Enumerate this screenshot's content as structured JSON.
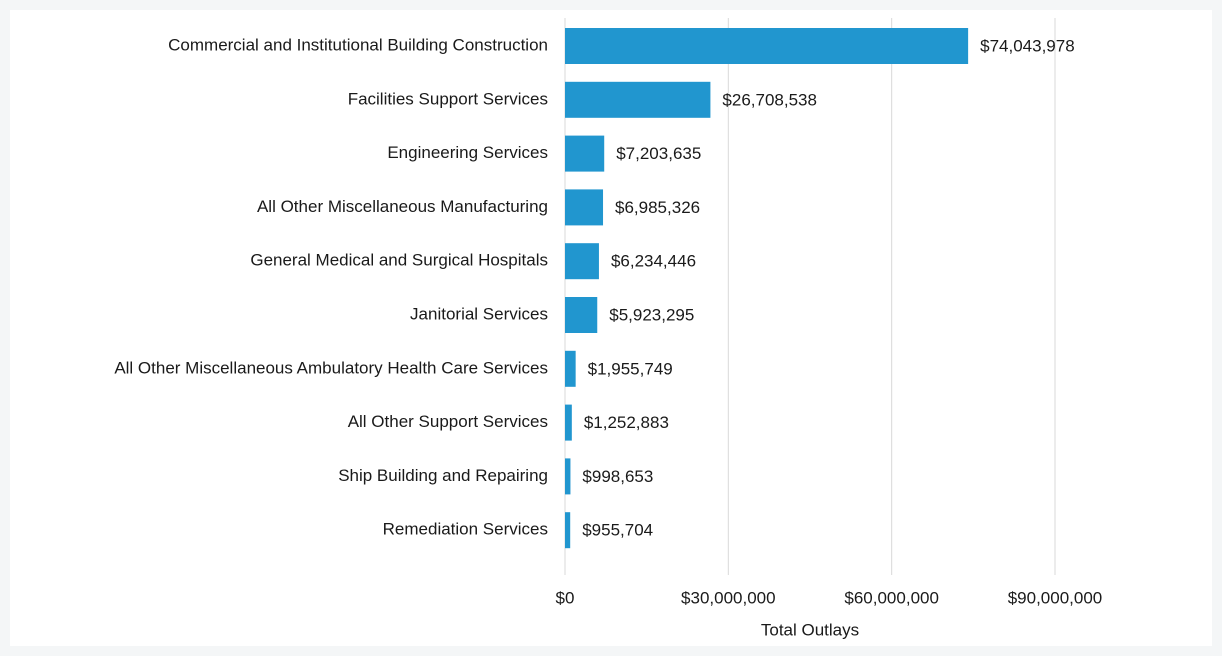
{
  "chart_data": {
    "type": "bar",
    "orientation": "horizontal",
    "x_label": "Total Outlays",
    "categories": [
      "Commercial and Institutional Building Construction",
      "Facilities Support Services",
      "Engineering Services",
      "All Other Miscellaneous Manufacturing",
      "General Medical and Surgical Hospitals",
      "Janitorial Services",
      "All Other Miscellaneous Ambulatory Health Care Services",
      "All Other Support Services",
      "Ship Building and Repairing",
      "Remediation Services"
    ],
    "values": [
      74043978,
      26708538,
      7203635,
      6985326,
      6234446,
      5923295,
      1955749,
      1252883,
      998653,
      955704
    ],
    "value_labels": [
      "$74,043,978",
      "$26,708,538",
      "$7,203,635",
      "$6,985,326",
      "$6,234,446",
      "$5,923,295",
      "$1,955,749",
      "$1,252,883",
      "$998,653",
      "$955,704"
    ],
    "color": "#2196cf",
    "xlim": [
      0,
      90000000
    ],
    "xticks": [
      {
        "value": 0,
        "label": "$0"
      },
      {
        "value": 30000000,
        "label": "$30,000,000"
      },
      {
        "value": 60000000,
        "label": "$60,000,000"
      },
      {
        "value": 90000000,
        "label": "$90,000,000"
      }
    ],
    "grid": true
  }
}
